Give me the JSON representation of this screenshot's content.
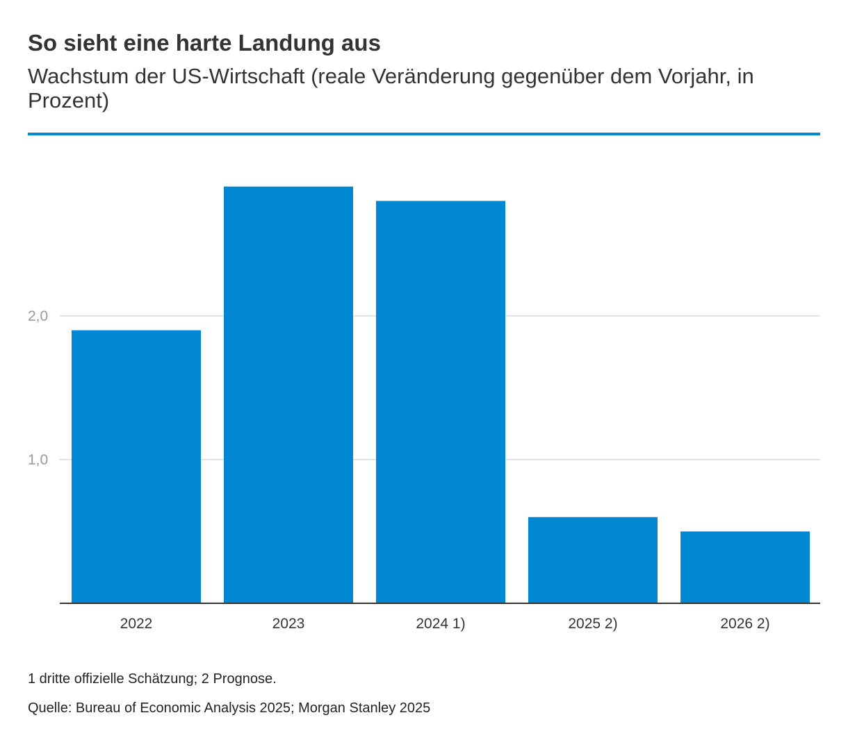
{
  "chart_data": {
    "type": "bar",
    "title": "So sieht eine harte Landung aus",
    "subtitle": "Wachstum der US-Wirtschaft (reale Veränderung gegenüber dem Vorjahr, in Prozent)",
    "categories": [
      "2022",
      "2023",
      "2024 1)",
      "2025 2)",
      "2026 2)"
    ],
    "values": [
      1.9,
      2.9,
      2.8,
      0.6,
      0.5
    ],
    "yticks": [
      1.0,
      2.0
    ],
    "ytick_labels": [
      "1,0",
      "2,0"
    ],
    "ylim": [
      0,
      3.0
    ],
    "xlabel": "",
    "ylabel": "",
    "grid": true,
    "legend": "none",
    "bar_color": "#0089d2",
    "footnote": "1 dritte offizielle Schätzung; 2 Prognose.",
    "source": "Quelle: Bureau of Economic Analysis 2025; Morgan Stanley 2025"
  },
  "colors": {
    "accent": "#0089d2",
    "gridline": "#e3e3e3",
    "baseline": "#333333"
  }
}
